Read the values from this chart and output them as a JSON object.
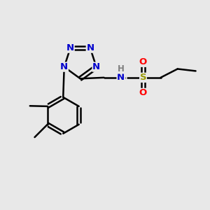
{
  "background_color": "#e8e8e8",
  "bond_color": "#000000",
  "N_color": "#0000cc",
  "S_color": "#999900",
  "O_color": "#ff0000",
  "H_color": "#7f7f7f",
  "lw": 1.8,
  "xlim": [
    0,
    10
  ],
  "ylim": [
    0,
    10
  ]
}
